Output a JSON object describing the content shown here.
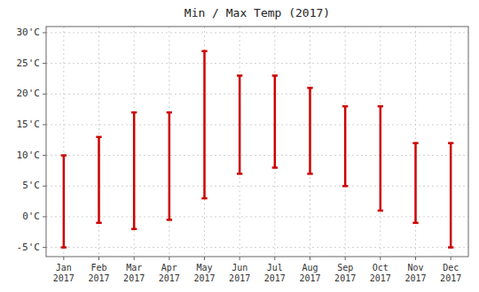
{
  "chart_data": {
    "type": "range",
    "title": "Min / Max Temp (2017)",
    "categories": [
      "Jan\n2017",
      "Feb\n2017",
      "Mar\n2017",
      "Apr\n2017",
      "May\n2017",
      "Jun\n2017",
      "Jul\n2017",
      "Aug\n2017",
      "Sep\n2017",
      "Oct\n2017",
      "Nov\n2017",
      "Dec\n2017"
    ],
    "series": [
      {
        "values": [
          -5,
          -1,
          -2,
          -0.5,
          3,
          7,
          8,
          7,
          5,
          1,
          -1,
          -5
        ]
      },
      {
        "values": [
          10,
          13,
          17,
          17,
          27,
          23,
          23,
          21,
          18,
          18,
          12,
          12
        ]
      }
    ],
    "color": "#cc0000",
    "ylim": [
      -6.5,
      31
    ],
    "yticks": [
      {
        "value": -5,
        "label": "-5'C"
      },
      {
        "value": 0,
        "label": "0'C"
      },
      {
        "value": 5,
        "label": "5'C"
      },
      {
        "value": 10,
        "label": "10'C"
      },
      {
        "value": 15,
        "label": "15'C"
      },
      {
        "value": 20,
        "label": "20'C"
      },
      {
        "value": 25,
        "label": "25'C"
      },
      {
        "value": 30,
        "label": "30'C"
      }
    ],
    "grid": true
  }
}
